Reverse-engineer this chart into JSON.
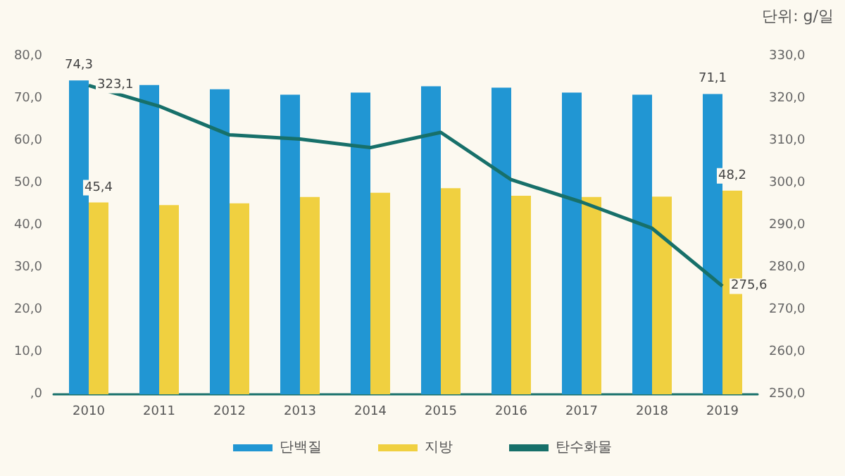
{
  "chart_data": {
    "type": "bar",
    "annotations": [
      "단위: g/일"
    ],
    "categories": [
      "2010",
      "2011",
      "2012",
      "2013",
      "2014",
      "2015",
      "2016",
      "2017",
      "2018",
      "2019"
    ],
    "series": [
      {
        "name": "단백질",
        "color": "#2196d3",
        "values": [
          74.3,
          73.2,
          72.2,
          70.9,
          71.4,
          72.9,
          72.6,
          71.4,
          70.9,
          71.1
        ],
        "value_labels": [
          "74,3",
          null,
          null,
          null,
          null,
          null,
          null,
          null,
          null,
          "71,1"
        ]
      },
      {
        "name": "지방",
        "color": "#f0d040",
        "values": [
          45.4,
          44.8,
          45.2,
          46.7,
          47.7,
          48.8,
          47.0,
          46.7,
          46.8,
          48.2
        ],
        "value_labels": [
          "45,4",
          null,
          null,
          null,
          null,
          null,
          null,
          null,
          null,
          "48,2"
        ]
      },
      {
        "name": "탄수화물",
        "type": "line",
        "axis": "y2",
        "color": "#17706a",
        "marker": "none",
        "values": [
          323.1,
          318.2,
          311.4,
          310.4,
          308.4,
          312.0,
          300.8,
          295.5,
          289.3,
          275.6
        ],
        "value_labels": [
          "323,1",
          null,
          null,
          null,
          null,
          null,
          null,
          null,
          null,
          "275,6"
        ]
      }
    ],
    "ylim": [
      0,
      80
    ],
    "yticks": [
      {
        "value": 0,
        "label": ",0"
      },
      {
        "value": 10,
        "label": "10,0"
      },
      {
        "value": 20,
        "label": "20,0"
      },
      {
        "value": 30,
        "label": "30,0"
      },
      {
        "value": 40,
        "label": "40,0"
      },
      {
        "value": 50,
        "label": "50,0"
      },
      {
        "value": 60,
        "label": "60,0"
      },
      {
        "value": 70,
        "label": "70,0"
      },
      {
        "value": 80,
        "label": "80,0"
      }
    ],
    "y2lim": [
      250,
      330
    ],
    "y2ticks": [
      {
        "value": 250,
        "label": "250,0"
      },
      {
        "value": 260,
        "label": "260,0"
      },
      {
        "value": 270,
        "label": "270,0"
      },
      {
        "value": 280,
        "label": "280,0"
      },
      {
        "value": 290,
        "label": "290,0"
      },
      {
        "value": 300,
        "label": "300,0"
      },
      {
        "value": 310,
        "label": "310,0"
      },
      {
        "value": 320,
        "label": "320,0"
      },
      {
        "value": 330,
        "label": "330,0"
      }
    ],
    "grid": false,
    "legend": "bottom"
  }
}
